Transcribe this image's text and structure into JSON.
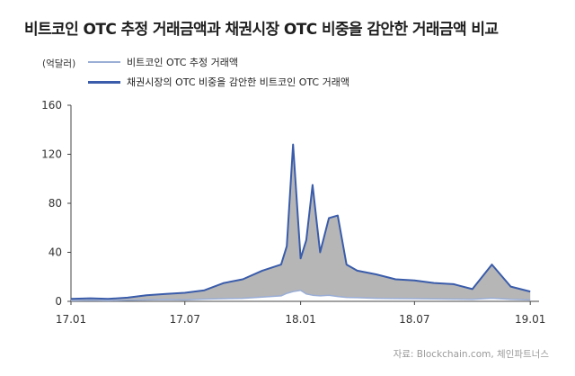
{
  "title": "비트코인 OTC 추정 거래금액과 채권시장 OTC 비중을 감안한 거래금액 비교",
  "unit": "(억달러)",
  "source": "자료: Blockchain.com, 체인파트너스",
  "chart_data": {
    "type": "line",
    "title": "비트코인 OTC 추정 거래금액과 채권시장 OTC 비중을 감안한 거래금액 비교",
    "ylabel": "(억달러)",
    "ylim": [
      0,
      160
    ],
    "yticks": [
      0,
      40,
      80,
      120,
      160
    ],
    "xticks": [
      "17.01",
      "17.07",
      "18.01",
      "18.07",
      "19.01"
    ],
    "grid": false,
    "legend_position": "top-left",
    "x": [
      "2017-01",
      "2017-02",
      "2017-03",
      "2017-04",
      "2017-05",
      "2017-06",
      "2017-07",
      "2017-08",
      "2017-09",
      "2017-10",
      "2017-11",
      "2017-12",
      "2017-12-10",
      "2017-12-20",
      "2018-01",
      "2018-01-10",
      "2018-01-20",
      "2018-02",
      "2018-02-15",
      "2018-03",
      "2018-03-15",
      "2018-04",
      "2018-05",
      "2018-06",
      "2018-07",
      "2018-08",
      "2018-09",
      "2018-10",
      "2018-11",
      "2018-12",
      "2019-01"
    ],
    "series": [
      {
        "name": "비트코인 OTC 추정 거래액",
        "color": "#9aaed6",
        "values": [
          0.5,
          0.8,
          0.6,
          0.9,
          1.2,
          1.5,
          1.2,
          1.8,
          2.2,
          2.5,
          3.5,
          4.5,
          6.5,
          8,
          9,
          6,
          5,
          4.5,
          5,
          4,
          3.2,
          3,
          2.5,
          2.3,
          2.2,
          2,
          1.8,
          1.6,
          2.6,
          1.7,
          1.2
        ]
      },
      {
        "name": "채권시장의 OTC 비중을 감안한 비트코인 OTC 거래액",
        "color": "#3a5caa",
        "values": [
          2,
          2.5,
          2,
          3,
          5,
          6,
          7,
          9,
          15,
          18,
          25,
          30,
          45,
          128,
          35,
          50,
          95,
          40,
          68,
          70,
          30,
          25,
          22,
          18,
          17,
          15,
          14,
          10,
          30,
          12,
          8
        ]
      }
    ]
  }
}
